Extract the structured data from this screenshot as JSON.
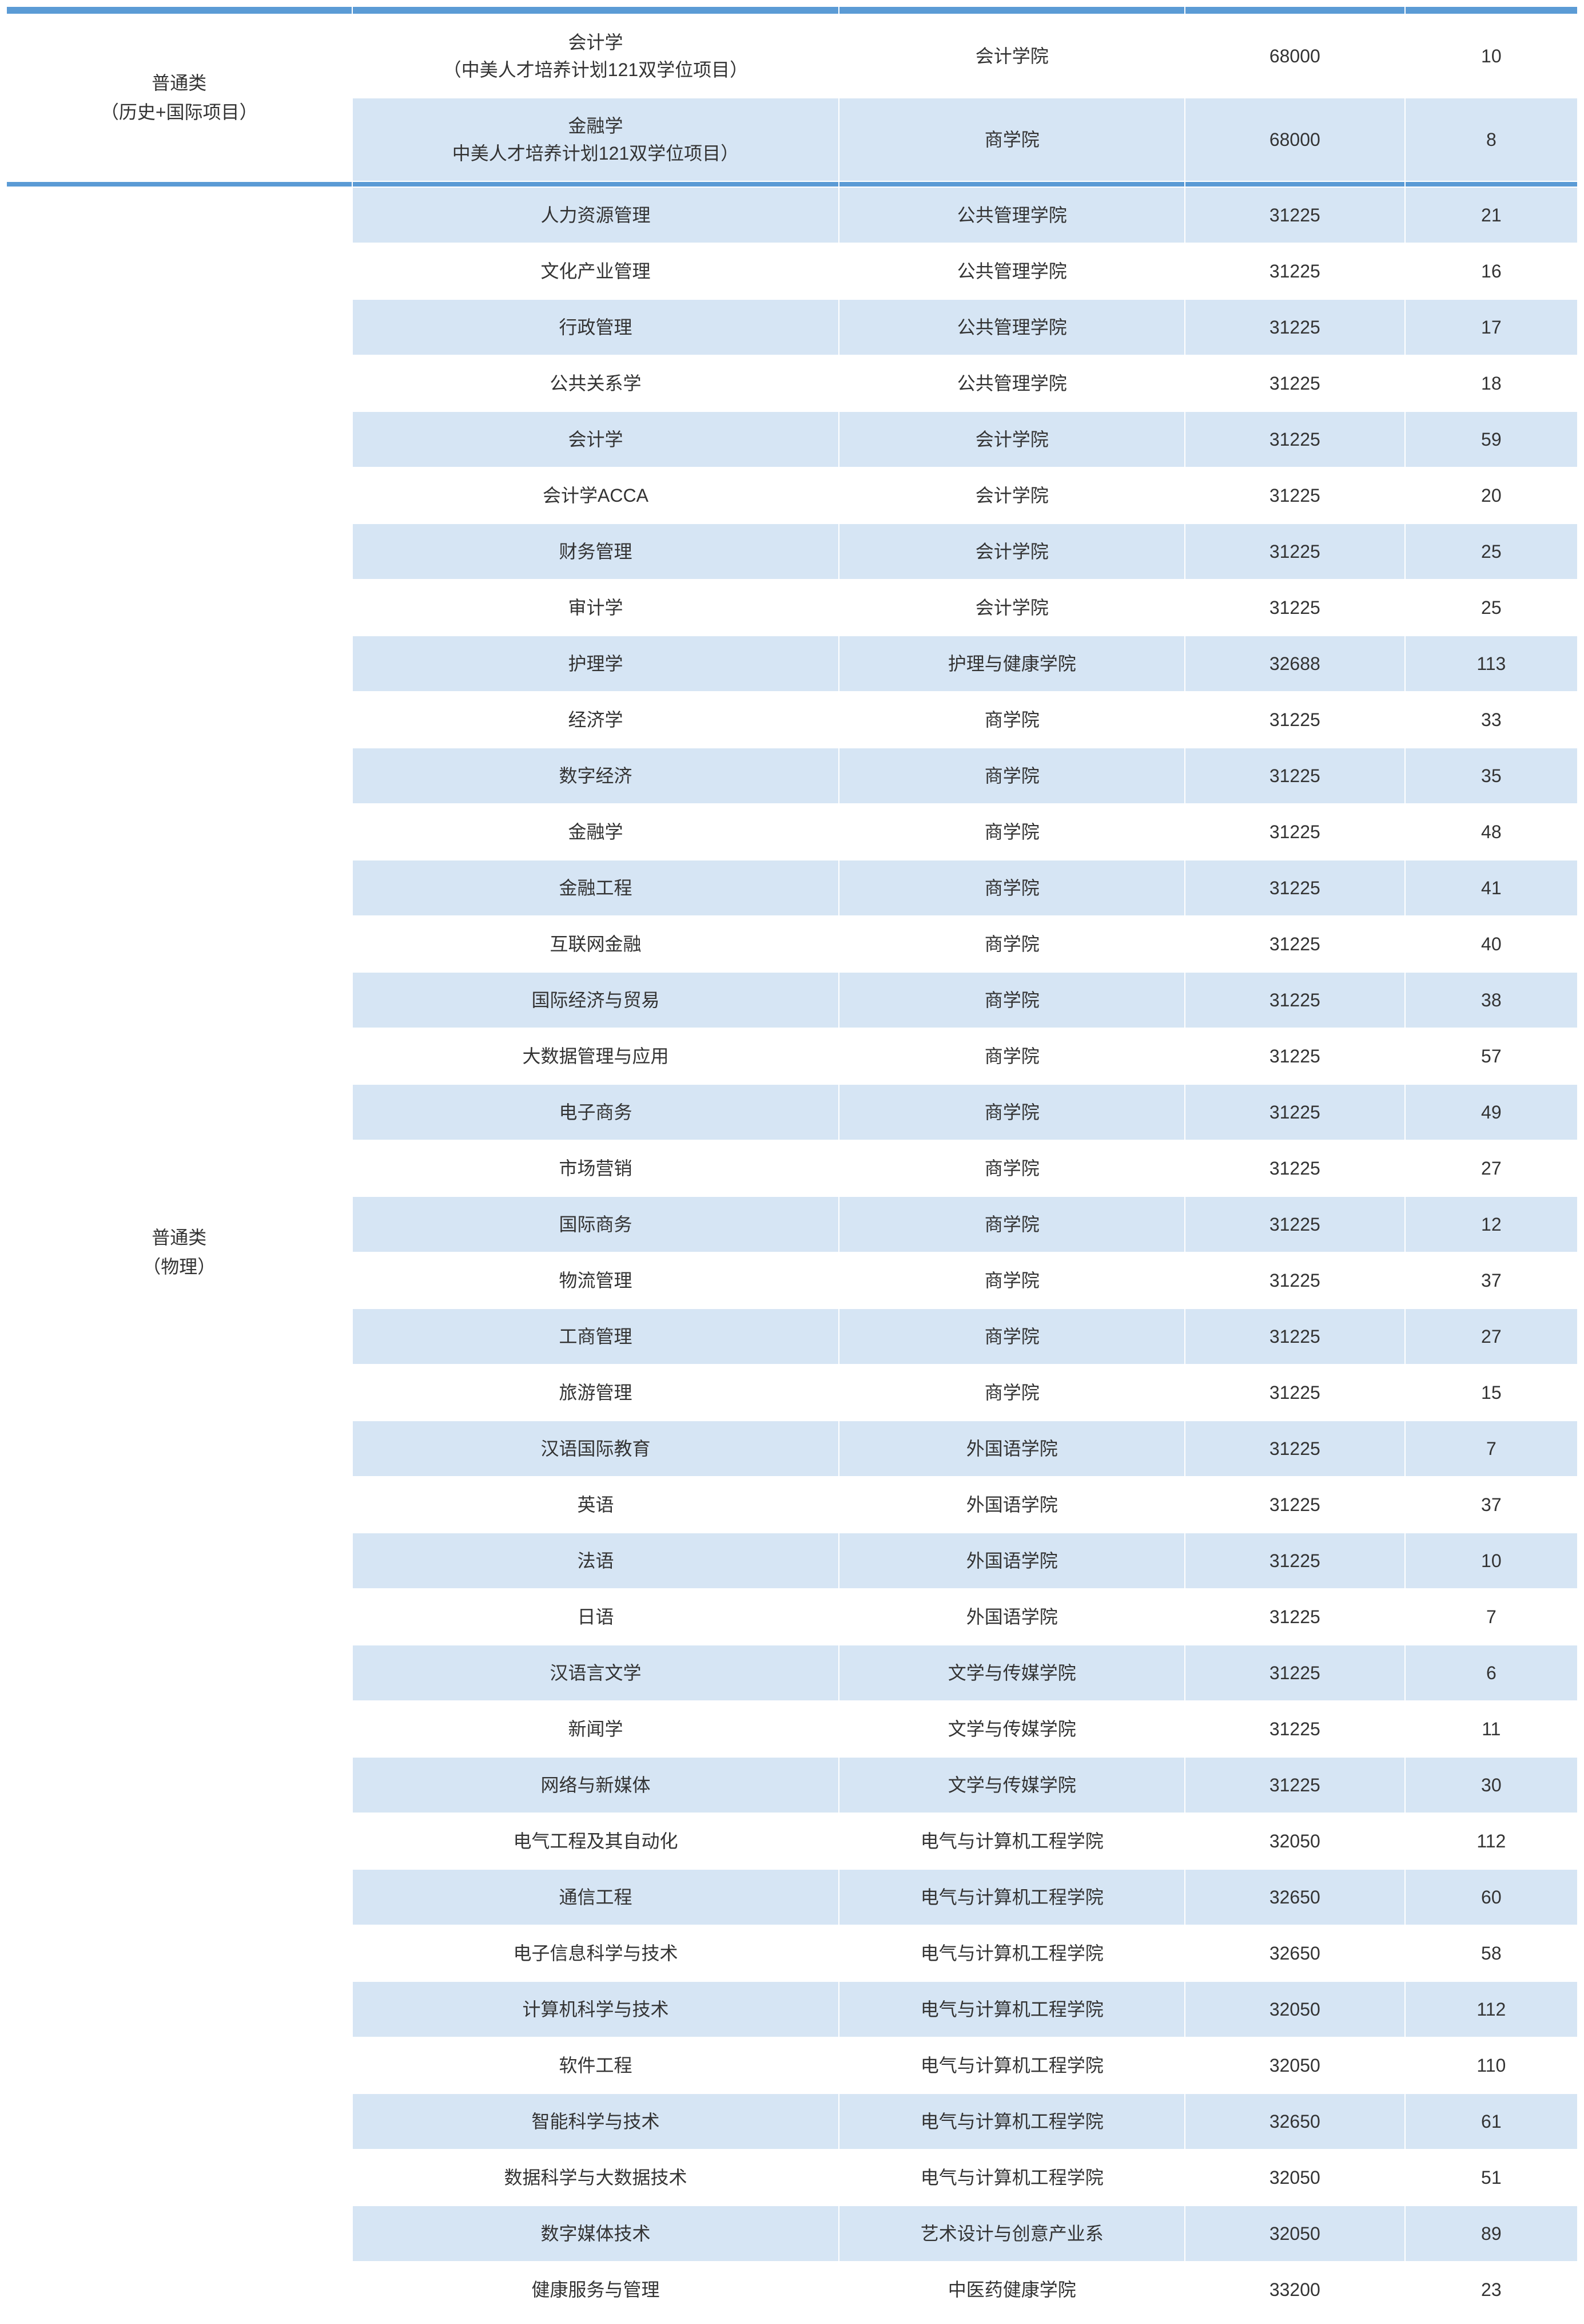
{
  "styling": {
    "header_band_color": "#5b9bd5",
    "odd_row_color": "#d6e5f4",
    "even_row_color": "#ffffff",
    "border_color": "#ffffff",
    "text_color": "#333333",
    "font_size": 32,
    "column_widths_pct": [
      22,
      31,
      22,
      14,
      11
    ]
  },
  "section1": {
    "category_line1": "普通类",
    "category_line2": "（历史+国际项目）",
    "rows": [
      {
        "major_line1": "会计学",
        "major_line2": "（中美人才培养计划121双学位项目）",
        "school": "会计学院",
        "fee": "68000",
        "quota": "10"
      },
      {
        "major_line1": "金融学",
        "major_line2": "中美人才培养计划121双学位项目）",
        "school": "商学院",
        "fee": "68000",
        "quota": "8"
      }
    ]
  },
  "section2": {
    "category_line1": "普通类",
    "category_line2": "（物理）",
    "rows": [
      {
        "major": "人力资源管理",
        "school": "公共管理学院",
        "fee": "31225",
        "quota": "21"
      },
      {
        "major": "文化产业管理",
        "school": "公共管理学院",
        "fee": "31225",
        "quota": "16"
      },
      {
        "major": "行政管理",
        "school": "公共管理学院",
        "fee": "31225",
        "quota": "17"
      },
      {
        "major": "公共关系学",
        "school": "公共管理学院",
        "fee": "31225",
        "quota": "18"
      },
      {
        "major": "会计学",
        "school": "会计学院",
        "fee": "31225",
        "quota": "59"
      },
      {
        "major": "会计学ACCA",
        "school": "会计学院",
        "fee": "31225",
        "quota": "20"
      },
      {
        "major": "财务管理",
        "school": "会计学院",
        "fee": "31225",
        "quota": "25"
      },
      {
        "major": "审计学",
        "school": "会计学院",
        "fee": "31225",
        "quota": "25"
      },
      {
        "major": "护理学",
        "school": "护理与健康学院",
        "fee": "32688",
        "quota": "113"
      },
      {
        "major": "经济学",
        "school": "商学院",
        "fee": "31225",
        "quota": "33"
      },
      {
        "major": "数字经济",
        "school": "商学院",
        "fee": "31225",
        "quota": "35"
      },
      {
        "major": "金融学",
        "school": "商学院",
        "fee": "31225",
        "quota": "48"
      },
      {
        "major": "金融工程",
        "school": "商学院",
        "fee": "31225",
        "quota": "41"
      },
      {
        "major": "互联网金融",
        "school": "商学院",
        "fee": "31225",
        "quota": "40"
      },
      {
        "major": "国际经济与贸易",
        "school": "商学院",
        "fee": "31225",
        "quota": "38"
      },
      {
        "major": "大数据管理与应用",
        "school": "商学院",
        "fee": "31225",
        "quota": "57"
      },
      {
        "major": "电子商务",
        "school": "商学院",
        "fee": "31225",
        "quota": "49"
      },
      {
        "major": "市场营销",
        "school": "商学院",
        "fee": "31225",
        "quota": "27"
      },
      {
        "major": "国际商务",
        "school": "商学院",
        "fee": "31225",
        "quota": "12"
      },
      {
        "major": "物流管理",
        "school": "商学院",
        "fee": "31225",
        "quota": "37"
      },
      {
        "major": "工商管理",
        "school": "商学院",
        "fee": "31225",
        "quota": "27"
      },
      {
        "major": "旅游管理",
        "school": "商学院",
        "fee": "31225",
        "quota": "15"
      },
      {
        "major": "汉语国际教育",
        "school": "外国语学院",
        "fee": "31225",
        "quota": "7"
      },
      {
        "major": "英语",
        "school": "外国语学院",
        "fee": "31225",
        "quota": "37"
      },
      {
        "major": "法语",
        "school": "外国语学院",
        "fee": "31225",
        "quota": "10"
      },
      {
        "major": "日语",
        "school": "外国语学院",
        "fee": "31225",
        "quota": "7"
      },
      {
        "major": "汉语言文学",
        "school": "文学与传媒学院",
        "fee": "31225",
        "quota": "6"
      },
      {
        "major": "新闻学",
        "school": "文学与传媒学院",
        "fee": "31225",
        "quota": "11"
      },
      {
        "major": "网络与新媒体",
        "school": "文学与传媒学院",
        "fee": "31225",
        "quota": "30"
      },
      {
        "major": "电气工程及其自动化",
        "school": "电气与计算机工程学院",
        "fee": "32050",
        "quota": "112"
      },
      {
        "major": "通信工程",
        "school": "电气与计算机工程学院",
        "fee": "32650",
        "quota": "60"
      },
      {
        "major": "电子信息科学与技术",
        "school": "电气与计算机工程学院",
        "fee": "32650",
        "quota": "58"
      },
      {
        "major": "计算机科学与技术",
        "school": "电气与计算机工程学院",
        "fee": "32050",
        "quota": "112"
      },
      {
        "major": "软件工程",
        "school": "电气与计算机工程学院",
        "fee": "32050",
        "quota": "110"
      },
      {
        "major": "智能科学与技术",
        "school": "电气与计算机工程学院",
        "fee": "32650",
        "quota": "61"
      },
      {
        "major": "数据科学与大数据技术",
        "school": "电气与计算机工程学院",
        "fee": "32050",
        "quota": "51"
      },
      {
        "major": "数字媒体技术",
        "school": "艺术设计与创意产业系",
        "fee": "32050",
        "quota": "89"
      },
      {
        "major": "健康服务与管理",
        "school": "中医药健康学院",
        "fee": "33200",
        "quota": "23"
      }
    ]
  }
}
